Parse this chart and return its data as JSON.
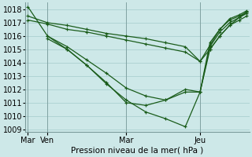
{
  "title": "Pression niveau de la mer( hPa )",
  "ylabel_values": [
    1009,
    1010,
    1011,
    1012,
    1013,
    1014,
    1015,
    1016,
    1017,
    1018
  ],
  "ylim": [
    1008.8,
    1018.5
  ],
  "xlim": [
    -1,
    90
  ],
  "background_color": "#cde8e8",
  "grid_color": "#b0d4d4",
  "line_color": "#1a5c1a",
  "x_ticks": [
    0,
    8,
    40,
    70
  ],
  "x_tick_labels": [
    "Mar",
    "Ven",
    "Mar",
    "Jeu"
  ],
  "x_vlines": [
    0,
    8,
    40,
    70
  ],
  "series": [
    {
      "x": [
        0,
        8,
        16,
        24,
        32,
        40,
        48,
        56,
        64,
        70,
        74,
        78,
        82,
        86,
        89
      ],
      "y": [
        1017.5,
        1017.0,
        1016.8,
        1016.5,
        1016.2,
        1016.0,
        1015.8,
        1015.5,
        1015.2,
        1014.1,
        1015.3,
        1016.5,
        1017.2,
        1017.5,
        1017.8
      ]
    },
    {
      "x": [
        0,
        8,
        16,
        24,
        32,
        40,
        48,
        56,
        64,
        70,
        74,
        78,
        82,
        86,
        89
      ],
      "y": [
        1017.2,
        1016.9,
        1016.5,
        1016.3,
        1016.0,
        1015.7,
        1015.4,
        1015.1,
        1014.8,
        1014.1,
        1015.0,
        1016.0,
        1016.8,
        1017.2,
        1017.5
      ]
    },
    {
      "x": [
        0,
        8,
        16,
        24,
        32,
        40,
        48,
        56,
        64,
        70,
        74,
        78,
        82,
        86,
        89
      ],
      "y": [
        1018.2,
        1016.0,
        1015.0,
        1013.8,
        1012.5,
        1011.0,
        1010.8,
        1011.2,
        1011.8,
        1011.8,
        1015.2,
        1016.3,
        1017.0,
        1017.4,
        1017.7
      ]
    },
    {
      "x": [
        8,
        16,
        24,
        32,
        40,
        48,
        56,
        64,
        70,
        74,
        78,
        82,
        86,
        89
      ],
      "y": [
        1016.0,
        1015.2,
        1014.2,
        1013.2,
        1012.1,
        1011.5,
        1011.2,
        1012.0,
        1011.8,
        1015.5,
        1016.5,
        1017.3,
        1017.6,
        1017.9
      ]
    },
    {
      "x": [
        8,
        16,
        24,
        32,
        40,
        48,
        56,
        64,
        70,
        74,
        78,
        82,
        86,
        89
      ],
      "y": [
        1015.8,
        1015.0,
        1013.8,
        1012.4,
        1011.2,
        1010.3,
        1009.8,
        1009.2,
        1011.8,
        1015.0,
        1016.0,
        1016.8,
        1017.4,
        1017.8
      ]
    }
  ]
}
